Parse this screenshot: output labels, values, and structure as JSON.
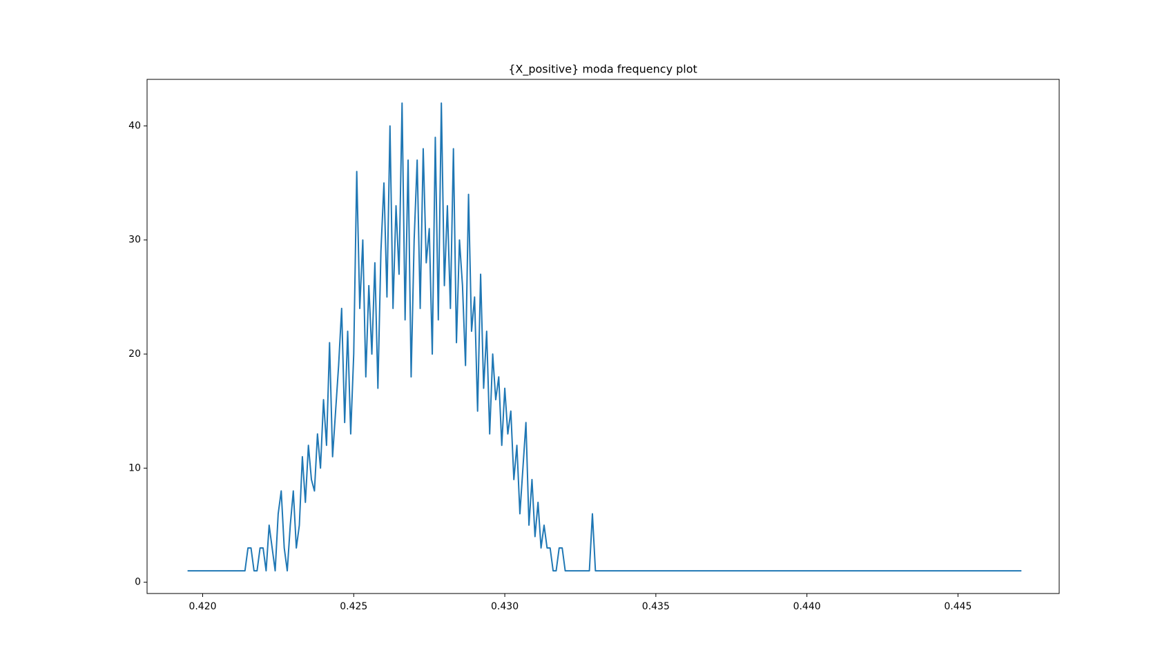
{
  "chart_data": {
    "type": "line",
    "title": "{X_positive} moda frequency plot",
    "x": [
      0.4195,
      0.4214,
      0.4215,
      0.4216,
      0.4217,
      0.4218,
      0.4219,
      0.422,
      0.4221,
      0.4222,
      0.4223,
      0.4224,
      0.4225,
      0.4226,
      0.4227,
      0.4228,
      0.4229,
      0.423,
      0.4231,
      0.4232,
      0.4233,
      0.4234,
      0.4235,
      0.4236,
      0.4237,
      0.4238,
      0.4239,
      0.424,
      0.4241,
      0.4242,
      0.4243,
      0.4244,
      0.4245,
      0.4246,
      0.4247,
      0.4248,
      0.4249,
      0.425,
      0.4251,
      0.4252,
      0.4253,
      0.4254,
      0.4255,
      0.4256,
      0.4257,
      0.4258,
      0.4259,
      0.426,
      0.4261,
      0.4262,
      0.4263,
      0.4264,
      0.4265,
      0.4266,
      0.4267,
      0.4268,
      0.4269,
      0.427,
      0.4271,
      0.4272,
      0.4273,
      0.4274,
      0.4275,
      0.4276,
      0.4277,
      0.4278,
      0.4279,
      0.428,
      0.4281,
      0.4282,
      0.4283,
      0.4284,
      0.4285,
      0.4286,
      0.4287,
      0.4288,
      0.4289,
      0.429,
      0.4291,
      0.4292,
      0.4293,
      0.4294,
      0.4295,
      0.4296,
      0.4297,
      0.4298,
      0.4299,
      0.43,
      0.4301,
      0.4302,
      0.4303,
      0.4304,
      0.4305,
      0.4306,
      0.4307,
      0.4308,
      0.4309,
      0.431,
      0.4311,
      0.4312,
      0.4313,
      0.4314,
      0.4315,
      0.4316,
      0.4317,
      0.4318,
      0.4319,
      0.432,
      0.4328,
      0.4329,
      0.433,
      0.4471
    ],
    "series": [
      {
        "color": "#1f77b4",
        "values": [
          1,
          1,
          3,
          3,
          1,
          1,
          3,
          3,
          1,
          5,
          3,
          1,
          6,
          8,
          3,
          1,
          5,
          8,
          3,
          5,
          11,
          7,
          12,
          9,
          8,
          13,
          10,
          16,
          12,
          21,
          11,
          15,
          19,
          24,
          14,
          22,
          13,
          20,
          36,
          24,
          30,
          18,
          26,
          20,
          28,
          17,
          29,
          35,
          25,
          40,
          24,
          33,
          27,
          42,
          23,
          37,
          18,
          30,
          37,
          24,
          38,
          28,
          31,
          20,
          39,
          23,
          42,
          26,
          33,
          24,
          38,
          21,
          30,
          26,
          19,
          34,
          22,
          25,
          15,
          27,
          17,
          22,
          13,
          20,
          16,
          18,
          12,
          17,
          13,
          15,
          9,
          12,
          6,
          10,
          14,
          5,
          9,
          4,
          7,
          3,
          5,
          3,
          3,
          1,
          1,
          3,
          3,
          1,
          1,
          6,
          1,
          1
        ]
      }
    ],
    "xlim": [
      0.41816,
      0.44835
    ],
    "ylim": [
      -0.99,
      44.08
    ],
    "xticks": [
      {
        "value": 0.42,
        "label": "0.420"
      },
      0.425,
      {
        "value": 0.43,
        "label": "0.430"
      },
      0.435,
      {
        "value": 0.44,
        "label": "0.440"
      },
      0.445
    ],
    "yticks": [
      0,
      10,
      20,
      30,
      40
    ]
  }
}
